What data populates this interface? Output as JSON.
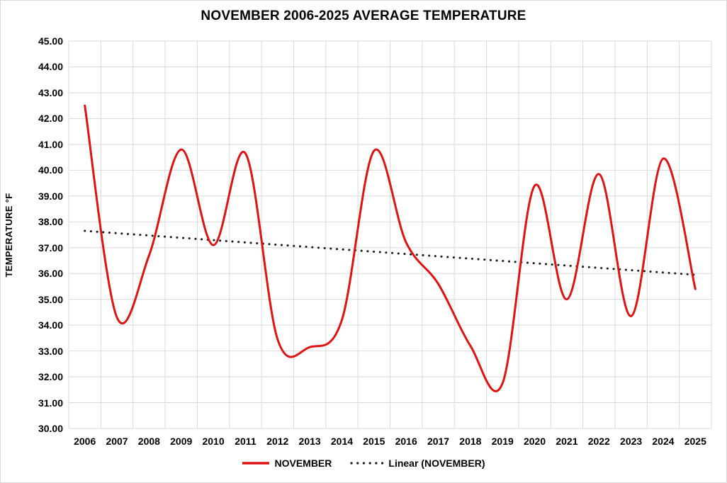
{
  "chart_data": {
    "type": "line",
    "title": "NOVEMBER 2006-2025 AVERAGE TEMPERATURE",
    "xlabel": "",
    "ylabel": "TEMPERATURE °F",
    "ylim": [
      30,
      45
    ],
    "y_tick_step": 1.0,
    "y_tick_labels": [
      "45.00",
      "44.00",
      "43.00",
      "42.00",
      "41.00",
      "40.00",
      "39.00",
      "38.00",
      "37.00",
      "36.00",
      "35.00",
      "34.00",
      "33.00",
      "32.00",
      "31.00",
      "30.00"
    ],
    "categories": [
      "2006",
      "2007",
      "2008",
      "2009",
      "2010",
      "2011",
      "2012",
      "2013",
      "2014",
      "2015",
      "2016",
      "2017",
      "2018",
      "2019",
      "2020",
      "2021",
      "2022",
      "2023",
      "2024",
      "2025"
    ],
    "series": [
      {
        "name": "NOVEMBER",
        "style": "smooth-line",
        "color": "#e01212",
        "values": [
          42.5,
          34.3,
          36.7,
          40.8,
          37.1,
          40.65,
          33.45,
          33.15,
          34.2,
          40.75,
          37.2,
          35.6,
          33.2,
          31.75,
          39.4,
          35.0,
          39.85,
          34.35,
          40.45,
          35.4
        ]
      },
      {
        "name": "Linear (NOVEMBER)",
        "style": "dotted-trend",
        "color": "#1a1a1a",
        "trend_start": 37.65,
        "trend_end": 35.95
      }
    ],
    "grid": true,
    "grid_color": "#d9d9d9",
    "legend_position": "bottom"
  }
}
